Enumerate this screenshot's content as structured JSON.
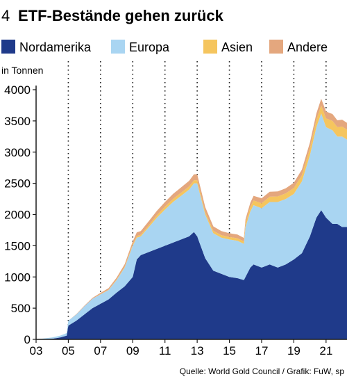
{
  "figure_number": "4",
  "title": "ETF-Bestände gehen zurück",
  "source": "Quelle: World Gold Council / Grafik: FuW, sp",
  "chart_data": {
    "type": "area",
    "stacked": true,
    "ylabel": "in Tonnen",
    "ylim": [
      0,
      4000
    ],
    "yticks": [
      0,
      500,
      1000,
      1500,
      2000,
      2500,
      3000,
      3500,
      4000
    ],
    "xlim": [
      2003.0,
      2022.3
    ],
    "xtick_values": [
      2003,
      2005,
      2007,
      2009,
      2011,
      2013,
      2015,
      2017,
      2019,
      2021
    ],
    "xtick_labels": [
      "03",
      "05",
      "07",
      "09",
      "11",
      "13",
      "15",
      "17",
      "19",
      "21"
    ],
    "grid": "dotted-vertical-at-ticks",
    "legend_position": "top",
    "colors": {
      "Nordamerika": "#1f3a8a",
      "Europa": "#a9d5f2",
      "Asien": "#f5c55e",
      "Andere": "#e4a77e"
    },
    "x": [
      2003.0,
      2003.5,
      2004.0,
      2004.5,
      2004.9,
      2005.0,
      2005.5,
      2006.0,
      2006.5,
      2007.0,
      2007.5,
      2008.0,
      2008.5,
      2009.0,
      2009.25,
      2009.5,
      2010.0,
      2010.5,
      2011.0,
      2011.5,
      2012.0,
      2012.5,
      2012.8,
      2013.0,
      2013.5,
      2014.0,
      2014.5,
      2015.0,
      2015.5,
      2015.9,
      2016.0,
      2016.3,
      2016.5,
      2017.0,
      2017.5,
      2018.0,
      2018.5,
      2019.0,
      2019.5,
      2020.0,
      2020.4,
      2020.7,
      2021.0,
      2021.4,
      2021.7,
      2022.0,
      2022.3
    ],
    "series": [
      {
        "name": "Nordamerika",
        "values": [
          0,
          5,
          10,
          30,
          60,
          220,
          300,
          400,
          500,
          570,
          640,
          750,
          850,
          1000,
          1280,
          1350,
          1400,
          1450,
          1500,
          1550,
          1600,
          1650,
          1720,
          1650,
          1300,
          1100,
          1050,
          1000,
          980,
          950,
          1000,
          1150,
          1200,
          1150,
          1200,
          1150,
          1200,
          1280,
          1380,
          1650,
          1950,
          2070,
          1950,
          1850,
          1850,
          1800,
          1800
        ]
      },
      {
        "name": "Europa",
        "values": [
          0,
          10,
          20,
          30,
          40,
          80,
          100,
          130,
          150,
          150,
          150,
          200,
          300,
          500,
          350,
          300,
          400,
          500,
          580,
          650,
          700,
          750,
          780,
          850,
          700,
          600,
          580,
          600,
          600,
          580,
          800,
          900,
          950,
          950,
          1000,
          1050,
          1050,
          1050,
          1150,
          1300,
          1450,
          1550,
          1450,
          1500,
          1400,
          1450,
          1400
        ]
      },
      {
        "name": "Asien",
        "values": [
          0,
          0,
          0,
          0,
          0,
          0,
          0,
          0,
          0,
          5,
          5,
          10,
          15,
          20,
          25,
          25,
          30,
          40,
          45,
          50,
          50,
          50,
          50,
          50,
          40,
          40,
          40,
          40,
          40,
          40,
          60,
          70,
          75,
          80,
          85,
          90,
          90,
          95,
          100,
          110,
          120,
          130,
          140,
          150,
          150,
          160,
          160
        ]
      },
      {
        "name": "Andere",
        "values": [
          0,
          0,
          0,
          0,
          0,
          0,
          5,
          10,
          15,
          20,
          25,
          30,
          40,
          50,
          60,
          60,
          65,
          70,
          75,
          80,
          85,
          90,
          95,
          95,
          80,
          70,
          65,
          60,
          60,
          55,
          65,
          70,
          75,
          80,
          80,
          80,
          80,
          85,
          90,
          95,
          100,
          105,
          110,
          110,
          110,
          110,
          110
        ]
      }
    ]
  }
}
